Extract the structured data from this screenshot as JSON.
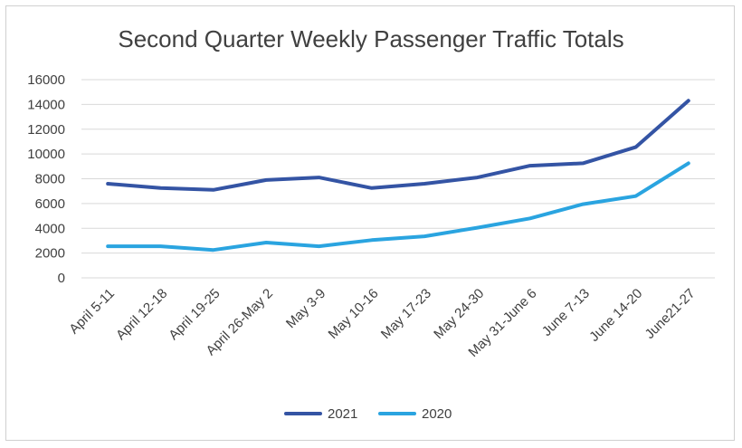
{
  "chart_data": {
    "type": "line",
    "title": "Second Quarter Weekly Passenger Traffic Totals",
    "xlabel": "",
    "ylabel": "",
    "categories": [
      "April 5-11",
      "April 12-18",
      "April 19-25",
      "April 26-May 2",
      "May 3-9",
      "May 10-16",
      "May 17-23",
      "May 24-30",
      "May 31-June 6",
      "June 7-13",
      "June 14-20",
      "June21-27"
    ],
    "ylim": [
      0,
      16000
    ],
    "yticks": [
      "0",
      "2000",
      "4000",
      "6000",
      "8000",
      "10000",
      "12000",
      "14000",
      "16000"
    ],
    "grid": true,
    "legend_position": "bottom",
    "series": [
      {
        "name": "2021",
        "color": "#3454a4",
        "values": [
          7600,
          7250,
          7100,
          7900,
          8100,
          7250,
          7600,
          8100,
          9050,
          9250,
          10550,
          14300
        ]
      },
      {
        "name": "2020",
        "color": "#2aa4e0",
        "values": [
          2550,
          2550,
          2250,
          2850,
          2550,
          3050,
          3350,
          4050,
          4800,
          5950,
          6600,
          9250
        ]
      }
    ]
  }
}
